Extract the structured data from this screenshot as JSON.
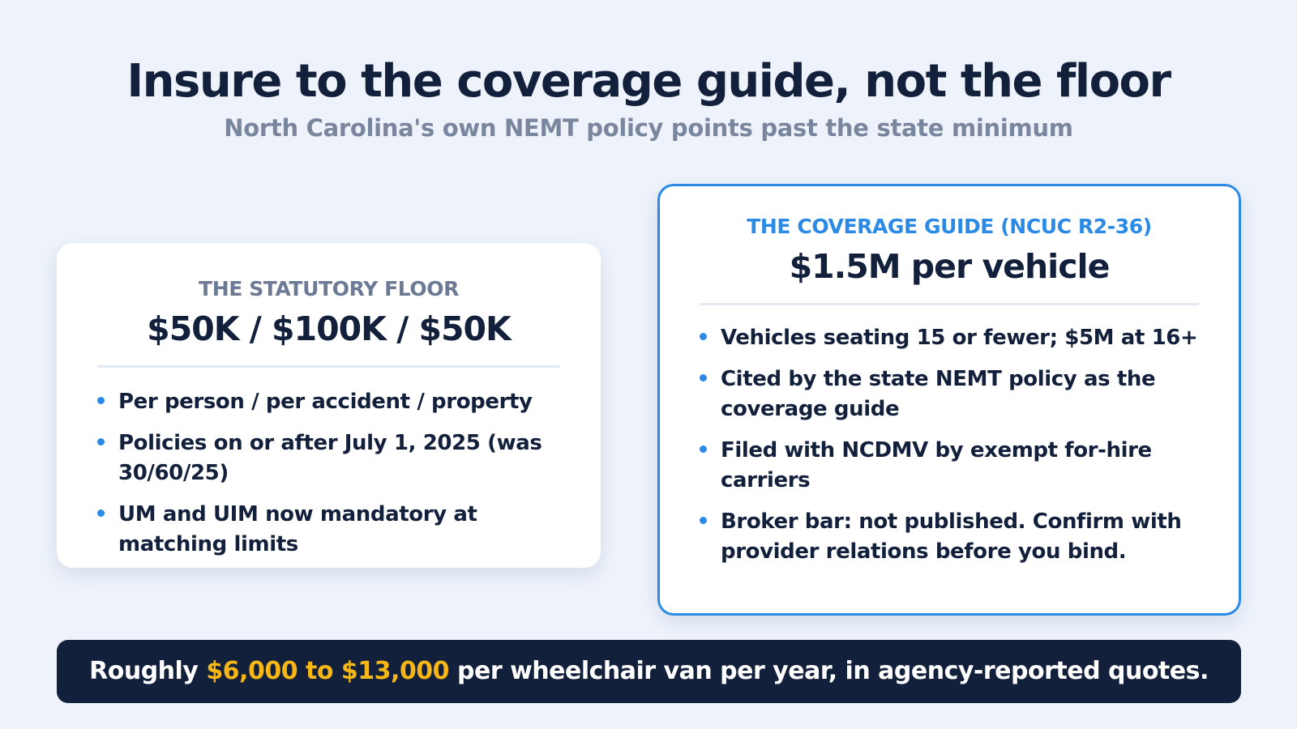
{
  "header": {
    "title": "Insure to the coverage guide, not the floor",
    "subtitle": "North Carolina's own NEMT policy points past the state minimum"
  },
  "floor_card": {
    "eyebrow": "THE STATUTORY FLOOR",
    "headline": "$50K / $100K / $50K",
    "bullets": [
      "Per person / per accident / property",
      "Policies on or after July 1, 2025 (was 30/60/25)",
      "UM and UIM now mandatory at matching limits"
    ]
  },
  "guide_card": {
    "eyebrow": "THE COVERAGE GUIDE (NCUC R2-36)",
    "headline": "$1.5M per vehicle",
    "bullets": [
      "Vehicles seating 15 or fewer; $5M at 16+",
      "Cited by the state NEMT policy as the coverage guide",
      "Filed with NCDMV by exempt for-hire carriers",
      "Broker bar: not published. Confirm with provider relations before you bind."
    ]
  },
  "banner": {
    "prefix": "Roughly ",
    "highlight": "$6,000 to $13,000",
    "suffix": " per wheelchair van per year, in agency-reported quotes."
  },
  "colors": {
    "background": "#eef3fb",
    "navy": "#12203b",
    "accent_blue": "#2a8ae6",
    "highlight_gold": "#f6b616",
    "muted_gray": "#7a869d"
  }
}
